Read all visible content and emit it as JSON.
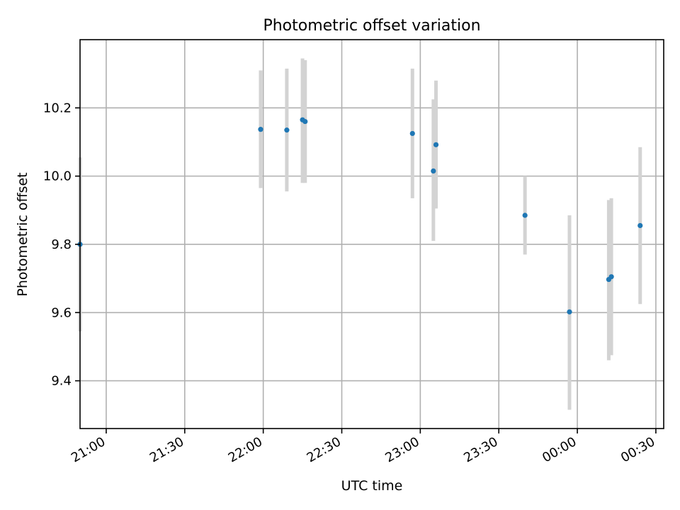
{
  "chart_data": {
    "type": "scatter",
    "title": "Photometric offset variation",
    "xlabel": "UTC time",
    "ylabel": "Photometric offset",
    "xlim": [
      "20:50",
      "00:33"
    ],
    "ylim": [
      9.26,
      10.4
    ],
    "x_ticks": [
      "21:00",
      "21:30",
      "22:00",
      "22:30",
      "23:00",
      "23:30",
      "00:00",
      "00:30"
    ],
    "y_ticks": [
      "9.4",
      "9.6",
      "9.8",
      "10.0",
      "10.2"
    ],
    "grid": true,
    "colors": {
      "points": "#1f77b4",
      "errorbars": "#d3d3d3",
      "grid": "#b0b0b0"
    },
    "points": [
      {
        "x": "20:50",
        "y": 9.8,
        "ylow": 9.545,
        "yhigh": 10.055
      },
      {
        "x": "21:59",
        "y": 10.137,
        "ylow": 9.965,
        "yhigh": 10.31
      },
      {
        "x": "22:09",
        "y": 10.135,
        "ylow": 9.955,
        "yhigh": 10.315
      },
      {
        "x": "22:15",
        "y": 10.165,
        "ylow": 9.98,
        "yhigh": 10.345
      },
      {
        "x": "22:16",
        "y": 10.16,
        "ylow": 9.98,
        "yhigh": 10.34
      },
      {
        "x": "22:57",
        "y": 10.125,
        "ylow": 9.935,
        "yhigh": 10.315
      },
      {
        "x": "23:05",
        "y": 10.015,
        "ylow": 9.81,
        "yhigh": 10.225
      },
      {
        "x": "23:06",
        "y": 10.092,
        "ylow": 9.905,
        "yhigh": 10.28
      },
      {
        "x": "23:40",
        "y": 9.885,
        "ylow": 9.77,
        "yhigh": 10.0
      },
      {
        "x": "23:57",
        "y": 9.602,
        "ylow": 9.315,
        "yhigh": 9.885
      },
      {
        "x": "00:12",
        "y": 9.697,
        "ylow": 9.46,
        "yhigh": 9.93
      },
      {
        "x": "00:13",
        "y": 9.705,
        "ylow": 9.475,
        "yhigh": 9.935
      },
      {
        "x": "00:24",
        "y": 9.855,
        "ylow": 9.625,
        "yhigh": 10.085
      }
    ]
  }
}
